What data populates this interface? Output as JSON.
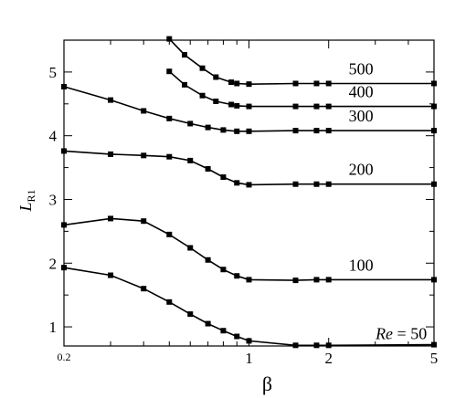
{
  "chart_data": {
    "type": "line",
    "xscale": "log",
    "xlim": [
      0.2,
      5
    ],
    "ylim": [
      0.7,
      5.5
    ],
    "xlabel": "β",
    "ylabel": "L",
    "ylabel_sub": "R1",
    "xticks": [
      {
        "value": 0.2,
        "label": "0.2"
      },
      {
        "value": 1,
        "label": "1"
      },
      {
        "value": 2,
        "label": "2"
      },
      {
        "value": 5,
        "label": "5"
      }
    ],
    "yticks": [
      {
        "value": 1,
        "label": "1"
      },
      {
        "value": 2,
        "label": "2"
      },
      {
        "value": 3,
        "label": "3"
      },
      {
        "value": 4,
        "label": "4"
      },
      {
        "value": 5,
        "label": "5"
      }
    ],
    "grid": false,
    "legend": "none",
    "series": [
      {
        "label": "500",
        "x": [
          0.5,
          0.571,
          0.667,
          0.75,
          0.857,
          0.9,
          1.0,
          1.5,
          1.8,
          2.0,
          5.0
        ],
        "y": [
          5.52,
          5.27,
          5.06,
          4.92,
          4.84,
          4.82,
          4.81,
          4.82,
          4.82,
          4.82,
          4.82
        ]
      },
      {
        "label": "400",
        "x": [
          0.5,
          0.571,
          0.667,
          0.75,
          0.857,
          0.9,
          1.0,
          1.5,
          1.8,
          2.0,
          5.0
        ],
        "y": [
          5.01,
          4.8,
          4.63,
          4.54,
          4.49,
          4.47,
          4.46,
          4.46,
          4.46,
          4.46,
          4.46
        ]
      },
      {
        "label": "300",
        "x": [
          0.2,
          0.3,
          0.4,
          0.5,
          0.6,
          0.7,
          0.8,
          0.9,
          1.0,
          1.5,
          1.8,
          2.0,
          5.0
        ],
        "y": [
          4.77,
          4.56,
          4.39,
          4.27,
          4.19,
          4.13,
          4.09,
          4.07,
          4.07,
          4.08,
          4.08,
          4.08,
          4.08
        ]
      },
      {
        "label": "200",
        "x": [
          0.2,
          0.3,
          0.4,
          0.5,
          0.6,
          0.7,
          0.8,
          0.9,
          1.0,
          1.5,
          1.8,
          2.0,
          5.0
        ],
        "y": [
          3.76,
          3.71,
          3.69,
          3.67,
          3.61,
          3.48,
          3.35,
          3.26,
          3.23,
          3.24,
          3.24,
          3.24,
          3.24
        ]
      },
      {
        "label": "100",
        "x": [
          0.2,
          0.3,
          0.4,
          0.5,
          0.6,
          0.7,
          0.8,
          0.9,
          1.0,
          1.5,
          1.8,
          2.0,
          5.0
        ],
        "y": [
          2.6,
          2.7,
          2.66,
          2.45,
          2.24,
          2.05,
          1.9,
          1.8,
          1.74,
          1.73,
          1.74,
          1.74,
          1.74
        ]
      },
      {
        "label": "Re = 50",
        "x": [
          0.2,
          0.3,
          0.4,
          0.5,
          0.6,
          0.7,
          0.8,
          0.9,
          1.0,
          1.5,
          1.8,
          2.0,
          5.0
        ],
        "y": [
          1.93,
          1.81,
          1.6,
          1.39,
          1.2,
          1.05,
          0.94,
          0.85,
          0.78,
          0.71,
          0.71,
          0.71,
          0.72
        ]
      }
    ]
  }
}
